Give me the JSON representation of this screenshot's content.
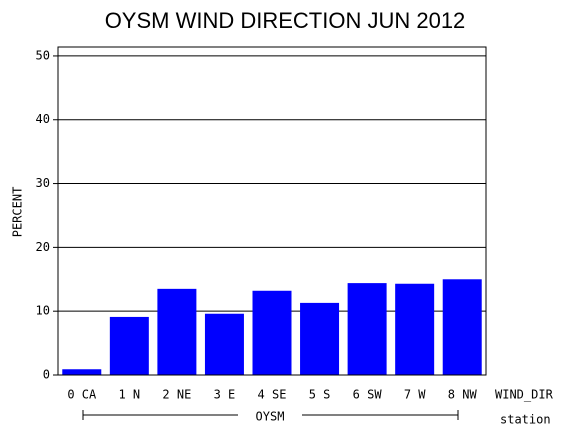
{
  "chart_data": {
    "type": "bar",
    "title": "OYSM WIND DIRECTION JUN 2012",
    "y_label": "PERCENT",
    "x_label": "WIND_DIR",
    "group_axis_label": "station",
    "group_label": "OYSM",
    "categories": [
      "0 CA",
      "1 N",
      "2 NE",
      "3 E",
      "4 SE",
      "5 S",
      "6 SW",
      "7 W",
      "8 NW"
    ],
    "values": [
      0.9,
      9.1,
      13.5,
      9.6,
      13.2,
      11.3,
      14.4,
      14.3,
      15.0
    ],
    "color": "#0000ff",
    "ylim": [
      0,
      51.4
    ],
    "yticks": [
      0,
      10,
      20,
      30,
      40,
      50
    ],
    "grid": true
  }
}
